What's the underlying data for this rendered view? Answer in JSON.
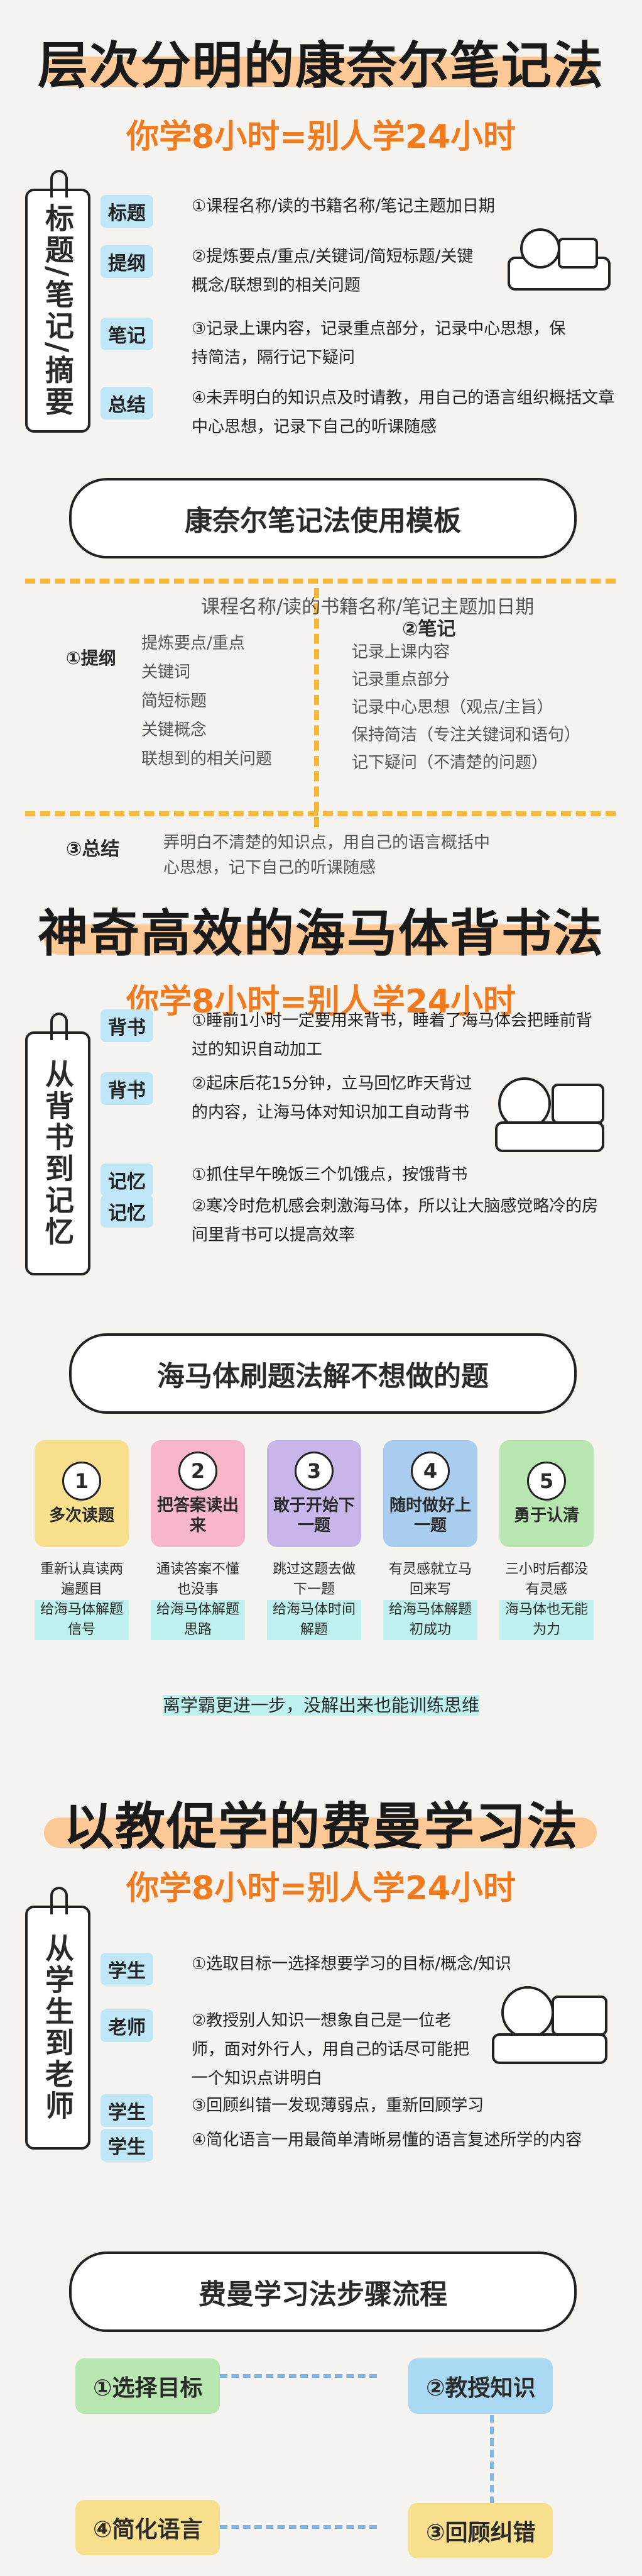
{
  "section1": {
    "title": "层次分明的康奈尔笔记法",
    "subtitle": "你学8小时=别人学24小时",
    "tag": "标题/笔记/摘要",
    "rows": [
      {
        "label": "标题",
        "text": "①课程名称/读的书籍名称/笔记主题加日期"
      },
      {
        "label": "提纲",
        "text": "②提炼要点/重点/关键词/简短标题/关键概念/联想到的相关问题"
      },
      {
        "label": "笔记",
        "text": "③记录上课内容，记录重点部分，记录中心思想，保持简洁，隔行记下疑问"
      },
      {
        "label": "总结",
        "text": "④未弄明白的知识点及时请教，用自己的语言组织概括文章中心思想，记录下自己的听课随感"
      }
    ],
    "bubble": "康奈尔笔记法使用模板",
    "template": {
      "top": "课程名称/读的书籍名称/笔记主题加日期",
      "left_items": [
        "提炼要点/重点",
        "关键词",
        "简短标题",
        "关键概念",
        "联想到的相关问题"
      ],
      "left_label": "①提纲",
      "right_label": "②笔记",
      "right_items": [
        "记录上课内容",
        "记录重点部分",
        "记录中心思想（观点/主旨）",
        "保持简洁（专注关键词和语句）",
        "记下疑问（不清楚的问题）"
      ],
      "bottom_label": "③总结",
      "bottom_text": "弄明白不清楚的知识点，用自己的语言概括中心思想，记下自己的听课随感"
    }
  },
  "section2": {
    "title": "神奇高效的海马体背书法",
    "subtitle": "你学8小时=别人学24小时",
    "tag": "从背书到记忆",
    "rows": [
      {
        "label": "背书",
        "text": "①睡前1小时一定要用来背书，睡着了海马体会把睡前背过的知识自动加工"
      },
      {
        "label": "背书",
        "text": "②起床后花15分钟，立马回忆昨天背过的内容，让海马体对知识加工自动背书"
      },
      {
        "label": "记忆",
        "text": "①抓住早午晚饭三个饥饿点，按饿背书"
      },
      {
        "label": "记忆",
        "text": "②寒冷时危机感会刺激海马体，所以让大脑感觉略冷的房间里背书可以提高效率"
      }
    ],
    "bubble": "海马体刷题法解不想做的题",
    "cols": [
      {
        "num": "1",
        "head": "多次读题",
        "body": "重新认真读两遍题目",
        "hl": "给海马体解题信号",
        "color": "#f8df8e"
      },
      {
        "num": "2",
        "head": "把答案读出来",
        "body": "通读答案不懂也没事",
        "hl": "给海马体解题思路",
        "color": "#f7b6c9"
      },
      {
        "num": "3",
        "head": "敢于开始下一题",
        "body": "跳过这题去做下一题",
        "hl": "给海马体时间解题",
        "color": "#c8b6ea"
      },
      {
        "num": "4",
        "head": "随时做好上一题",
        "body": "有灵感就立马回来写",
        "hl": "给海马体解题初成功",
        "color": "#a9cdee"
      },
      {
        "num": "5",
        "head": "勇于认清",
        "body": "三小时后都没有灵感",
        "hl": "海马体也无能为力",
        "color": "#b8e6b0"
      }
    ],
    "footer": "离学霸更进一步，没解出来也能训练思维"
  },
  "section3": {
    "title": "以教促学的费曼学习法",
    "subtitle": "你学8小时=别人学24小时",
    "tag": "从学生到老师",
    "rows": [
      {
        "label": "学生",
        "text": "①选取目标一选择想要学习的目标/概念/知识"
      },
      {
        "label": "老师",
        "text": "②教授别人知识一想象自己是一位老师，面对外行人，用自己的话尽可能把一个知识点讲明白"
      },
      {
        "label": "学生",
        "text": "③回顾纠错一发现薄弱点，重新回顾学习"
      },
      {
        "label": "学生",
        "text": "④简化语言一用最简单清晰易懂的语言复述所学的内容"
      }
    ],
    "bubble": "费曼学习法步骤流程",
    "steps": [
      "①选择目标",
      "②教授知识",
      "③回顾纠错",
      "④简化语言"
    ]
  }
}
